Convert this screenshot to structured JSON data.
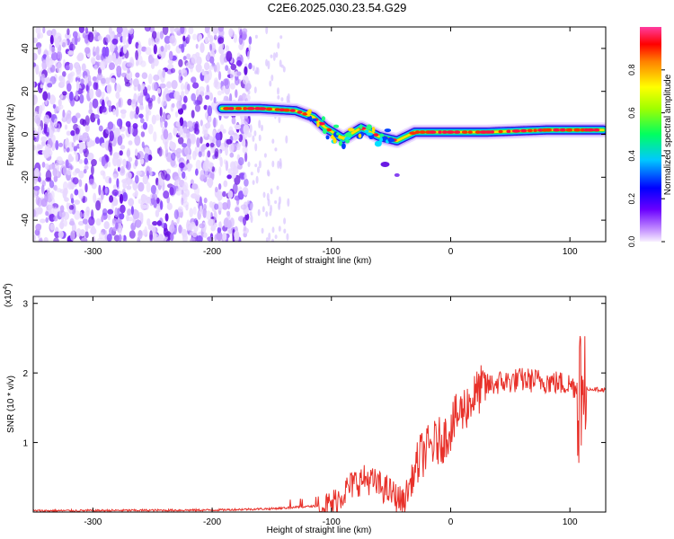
{
  "title": "C2E6.2025.030.23.54.G29",
  "chart_data": [
    {
      "type": "heatmap",
      "xlabel": "Height of straight line (km)",
      "ylabel": "Frequency (Hz)",
      "xlim": [
        -350,
        130
      ],
      "ylim": [
        -50,
        50
      ],
      "xticks": [
        -300,
        -200,
        -100,
        0,
        100
      ],
      "yticks": [
        -40,
        -20,
        0,
        20,
        40
      ],
      "colorbar": {
        "label": "Normalized spectral amplitude",
        "range": [
          0.0,
          1.0
        ],
        "ticks": [
          "0.0",
          "0.2",
          "0.4",
          "0.6",
          "0.8"
        ],
        "colormap": "rainbow (white-violet-blue-cyan-green-yellow-red-magenta)"
      },
      "ridge": [
        {
          "x": -192,
          "y": 12
        },
        {
          "x": -160,
          "y": 12
        },
        {
          "x": -130,
          "y": 11
        },
        {
          "x": -115,
          "y": 8
        },
        {
          "x": -105,
          "y": 3
        },
        {
          "x": -90,
          "y": -2
        },
        {
          "x": -75,
          "y": 3
        },
        {
          "x": -60,
          "y": -1
        },
        {
          "x": -45,
          "y": -3
        },
        {
          "x": -30,
          "y": 1
        },
        {
          "x": -10,
          "y": 1
        },
        {
          "x": 30,
          "y": 1
        },
        {
          "x": 80,
          "y": 2
        },
        {
          "x": 128,
          "y": 2
        }
      ]
    },
    {
      "type": "line",
      "xlabel": "Height of straight line (km)",
      "ylabel": "SNR (10 * v/v)",
      "yscale_label": "(x10",
      "yscale_exp": "4",
      "xlim": [
        -350,
        130
      ],
      "ylim": [
        0,
        3.1
      ],
      "xticks": [
        -300,
        -200,
        -100,
        0,
        100
      ],
      "yticks": [
        1,
        2,
        3
      ],
      "color": "#e8312a",
      "envelope": [
        {
          "x": -350,
          "y": 0.02
        },
        {
          "x": -200,
          "y": 0.03
        },
        {
          "x": -150,
          "y": 0.05
        },
        {
          "x": -120,
          "y": 0.08
        },
        {
          "x": -105,
          "y": 0.1
        },
        {
          "x": -100,
          "y": 0.12
        },
        {
          "x": -90,
          "y": 0.3
        },
        {
          "x": -80,
          "y": 0.45
        },
        {
          "x": -70,
          "y": 0.5
        },
        {
          "x": -60,
          "y": 0.4
        },
        {
          "x": -50,
          "y": 0.3
        },
        {
          "x": -40,
          "y": 0.15
        },
        {
          "x": -30,
          "y": 0.6
        },
        {
          "x": -25,
          "y": 0.85
        },
        {
          "x": -15,
          "y": 1.0
        },
        {
          "x": -5,
          "y": 1.1
        },
        {
          "x": 5,
          "y": 1.4
        },
        {
          "x": 15,
          "y": 1.6
        },
        {
          "x": 25,
          "y": 1.8
        },
        {
          "x": 40,
          "y": 1.88
        },
        {
          "x": 60,
          "y": 1.92
        },
        {
          "x": 80,
          "y": 1.9
        },
        {
          "x": 100,
          "y": 1.85
        },
        {
          "x": 108,
          "y": 1.8
        },
        {
          "x": 112,
          "y": 1.78
        },
        {
          "x": 130,
          "y": 1.76
        }
      ]
    }
  ]
}
